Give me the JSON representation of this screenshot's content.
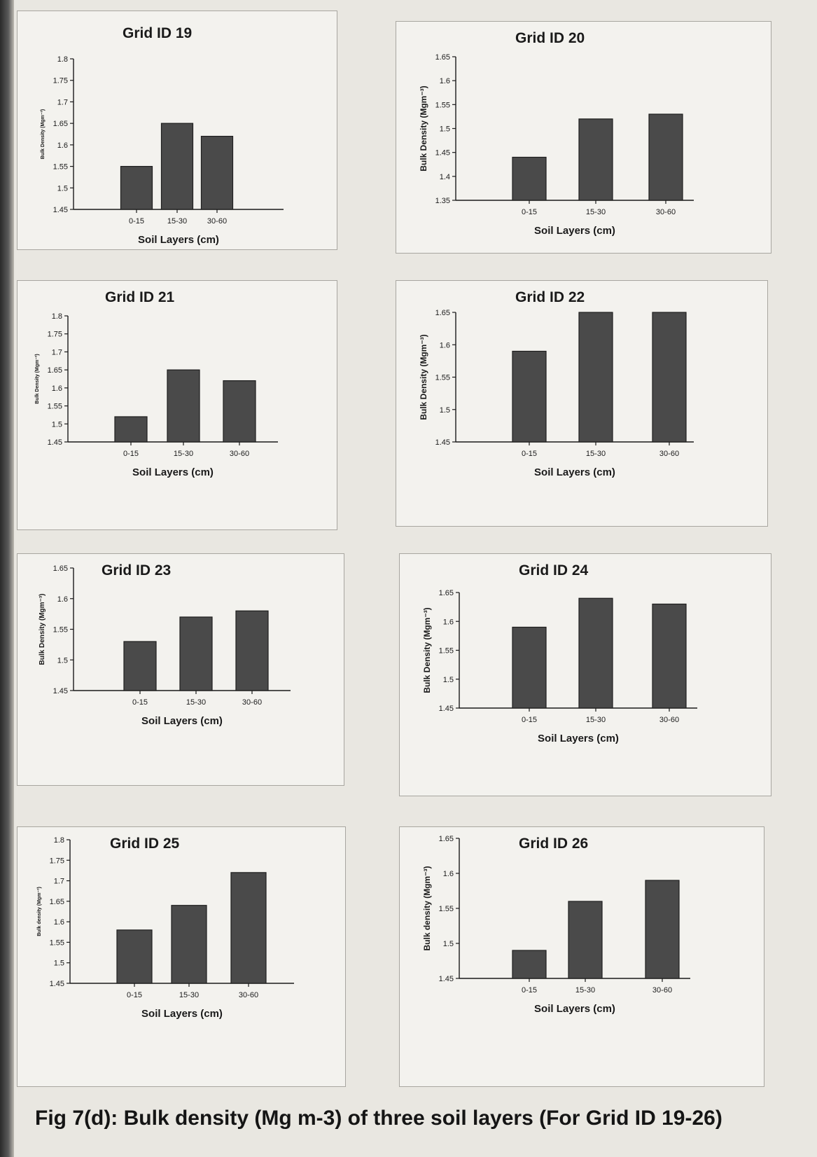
{
  "caption": "Fig 7(d): Bulk density (Mg m-3) of three soil layers (For Grid ID 19-26)",
  "chart_data": [
    {
      "type": "bar",
      "title": "Grid ID 19",
      "xlabel": "Soil Layers (cm)",
      "ylabel": "Bulk Density (Mgm⁻³)",
      "categories": [
        "0-15",
        "15-30",
        "30-60"
      ],
      "values": [
        1.55,
        1.65,
        1.62
      ],
      "ylim": [
        1.45,
        1.8
      ],
      "yticks": [
        "1.45",
        "1.5",
        "1.55",
        "1.6",
        "1.65",
        "1.7",
        "1.75",
        "1.8"
      ]
    },
    {
      "type": "bar",
      "title": "Grid ID 20",
      "xlabel": "Soil Layers (cm)",
      "ylabel": "Bulk Density (Mgm⁻³)",
      "categories": [
        "0-15",
        "15-30",
        "30-60"
      ],
      "values": [
        1.44,
        1.52,
        1.53
      ],
      "ylim": [
        1.35,
        1.65
      ],
      "yticks": [
        "1.35",
        "1.4",
        "1.45",
        "1.5",
        "1.55",
        "1.6",
        "1.65"
      ]
    },
    {
      "type": "bar",
      "title": "Grid ID 21",
      "xlabel": "Soil Layers (cm)",
      "ylabel": "Bulk Density (Mgm⁻³)",
      "categories": [
        "0-15",
        "15-30",
        "30-60"
      ],
      "values": [
        1.52,
        1.65,
        1.62
      ],
      "ylim": [
        1.45,
        1.8
      ],
      "yticks": [
        "1.45",
        "1.5",
        "1.55",
        "1.6",
        "1.65",
        "1.7",
        "1.75",
        "1.8"
      ]
    },
    {
      "type": "bar",
      "title": "Grid ID 22",
      "xlabel": "Soil Layers (cm)",
      "ylabel": "Bulk Density (Mgm⁻³)",
      "categories": [
        "0-15",
        "15-30",
        "30-60"
      ],
      "values": [
        1.59,
        1.65,
        1.65
      ],
      "ylim": [
        1.45,
        1.65
      ],
      "yticks": [
        "1.45",
        "1.5",
        "1.55",
        "1.6",
        "1.65"
      ]
    },
    {
      "type": "bar",
      "title": "Grid ID 23",
      "xlabel": "Soil Layers (cm)",
      "ylabel": "Bulk Density (Mgm⁻³)",
      "categories": [
        "0-15",
        "15-30",
        "30-60"
      ],
      "values": [
        1.53,
        1.57,
        1.58
      ],
      "ylim": [
        1.45,
        1.65
      ],
      "yticks": [
        "1.45",
        "1.5",
        "1.55",
        "1.6",
        "1.65"
      ]
    },
    {
      "type": "bar",
      "title": "Grid ID 24",
      "xlabel": "Soil Layers (cm)",
      "ylabel": "Bulk Density (Mgm⁻³)",
      "categories": [
        "0-15",
        "15-30",
        "30-60"
      ],
      "values": [
        1.59,
        1.64,
        1.63
      ],
      "ylim": [
        1.45,
        1.65
      ],
      "yticks": [
        "1.45",
        "1.5",
        "1.55",
        "1.6",
        "1.65"
      ]
    },
    {
      "type": "bar",
      "title": "Grid ID 25",
      "xlabel": "Soil Layers (cm)",
      "ylabel": "Bulk density (Mgm⁻³)",
      "categories": [
        "0-15",
        "15-30",
        "30-60"
      ],
      "values": [
        1.58,
        1.64,
        1.72
      ],
      "ylim": [
        1.45,
        1.8
      ],
      "yticks": [
        "1.45",
        "1.5",
        "1.55",
        "1.6",
        "1.65",
        "1.7",
        "1.75",
        "1.8"
      ]
    },
    {
      "type": "bar",
      "title": "Grid ID 26",
      "xlabel": "Soil Layers (cm)",
      "ylabel": "Bulk density (Mgm⁻³)",
      "categories": [
        "0-15",
        "15-30",
        "30-60"
      ],
      "values": [
        1.49,
        1.56,
        1.59
      ],
      "ylim": [
        1.45,
        1.65
      ],
      "yticks": [
        "1.45",
        "1.5",
        "1.55",
        "1.6",
        "1.65"
      ]
    }
  ]
}
